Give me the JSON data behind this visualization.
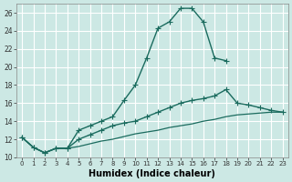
{
  "xlabel": "Humidex (Indice chaleur)",
  "xlim": [
    -0.5,
    23.5
  ],
  "ylim": [
    10,
    27
  ],
  "yticks": [
    10,
    12,
    14,
    16,
    18,
    20,
    22,
    24,
    26
  ],
  "xticks": [
    0,
    1,
    2,
    3,
    4,
    5,
    6,
    7,
    8,
    9,
    10,
    11,
    12,
    13,
    14,
    15,
    16,
    17,
    18,
    19,
    20,
    21,
    22,
    23
  ],
  "background_color": "#cce8e4",
  "grid_color": "#ffffff",
  "line_color": "#1a6b5e",
  "line1_x": [
    0,
    1,
    2,
    3,
    4,
    5,
    6,
    7,
    8,
    9,
    10,
    11,
    12,
    13,
    14,
    15,
    16,
    17,
    18
  ],
  "line1_y": [
    12.2,
    11.1,
    10.5,
    11.0,
    11.0,
    13.0,
    13.5,
    14.0,
    14.5,
    16.3,
    18.0,
    21.0,
    24.3,
    25.0,
    26.5,
    26.5,
    25.0,
    21.0,
    20.7
  ],
  "line2_x": [
    0,
    1,
    2,
    3,
    4,
    5,
    6,
    7,
    8,
    9,
    10,
    11,
    12,
    13,
    14,
    15,
    16,
    17,
    18,
    19,
    20,
    21,
    22,
    23
  ],
  "line2_y": [
    12.2,
    11.1,
    10.5,
    11.0,
    11.0,
    12.0,
    12.5,
    13.0,
    13.5,
    13.8,
    14.0,
    14.5,
    15.0,
    15.5,
    16.0,
    16.3,
    16.5,
    16.8,
    17.5,
    16.0,
    15.8,
    15.5,
    15.2,
    15.0
  ],
  "line3_x": [
    0,
    1,
    2,
    3,
    4,
    5,
    6,
    7,
    8,
    9,
    10,
    11,
    12,
    13,
    14,
    15,
    16,
    17,
    18,
    19,
    20,
    21,
    22,
    23
  ],
  "line3_y": [
    12.2,
    11.1,
    10.5,
    11.0,
    11.0,
    11.2,
    11.5,
    11.8,
    12.0,
    12.3,
    12.6,
    12.8,
    13.0,
    13.3,
    13.5,
    13.7,
    14.0,
    14.2,
    14.5,
    14.7,
    14.8,
    14.9,
    15.0,
    15.0
  ]
}
